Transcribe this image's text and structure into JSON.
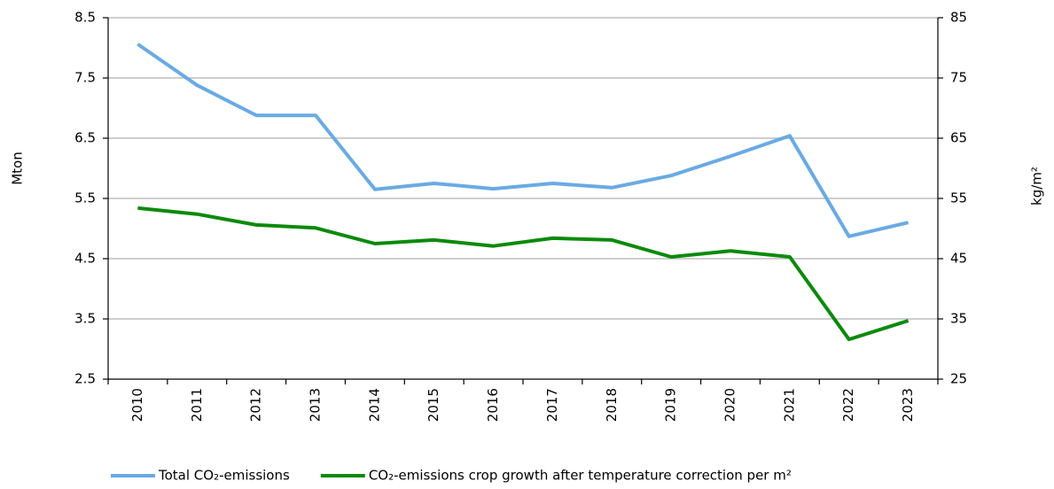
{
  "chart_data": {
    "type": "line",
    "categories": [
      "2010",
      "2011",
      "2012",
      "2013",
      "2014",
      "2015",
      "2016",
      "2017",
      "2018",
      "2019",
      "2020",
      "2021",
      "2022",
      "2023"
    ],
    "y_label": "Mton",
    "y2_label": "kg/m²",
    "ylim": [
      2.5,
      8.5
    ],
    "yticks": [
      2.5,
      3.5,
      4.5,
      5.5,
      6.5,
      7.5,
      8.5
    ],
    "y2lim": [
      25,
      85
    ],
    "y2ticks": [
      25,
      35,
      45,
      55,
      65,
      75,
      85
    ],
    "grid": true,
    "legend": "bottom",
    "series": [
      {
        "name": "Total CO₂-emissions",
        "color": "#6aaae4",
        "values": [
          8.06,
          7.38,
          6.88,
          6.88,
          5.65,
          5.75,
          5.66,
          5.75,
          5.68,
          5.88,
          6.2,
          6.54,
          4.87,
          5.1
        ]
      },
      {
        "name": "CO₂-emissions crop growth after temperature correction per m²",
        "color": "#0a8a0a",
        "axis": "y2",
        "values": [
          53.4,
          52.4,
          50.6,
          50.1,
          47.5,
          48.1,
          47.1,
          48.4,
          48.1,
          45.3,
          46.3,
          45.3,
          31.6,
          34.7
        ]
      }
    ]
  }
}
